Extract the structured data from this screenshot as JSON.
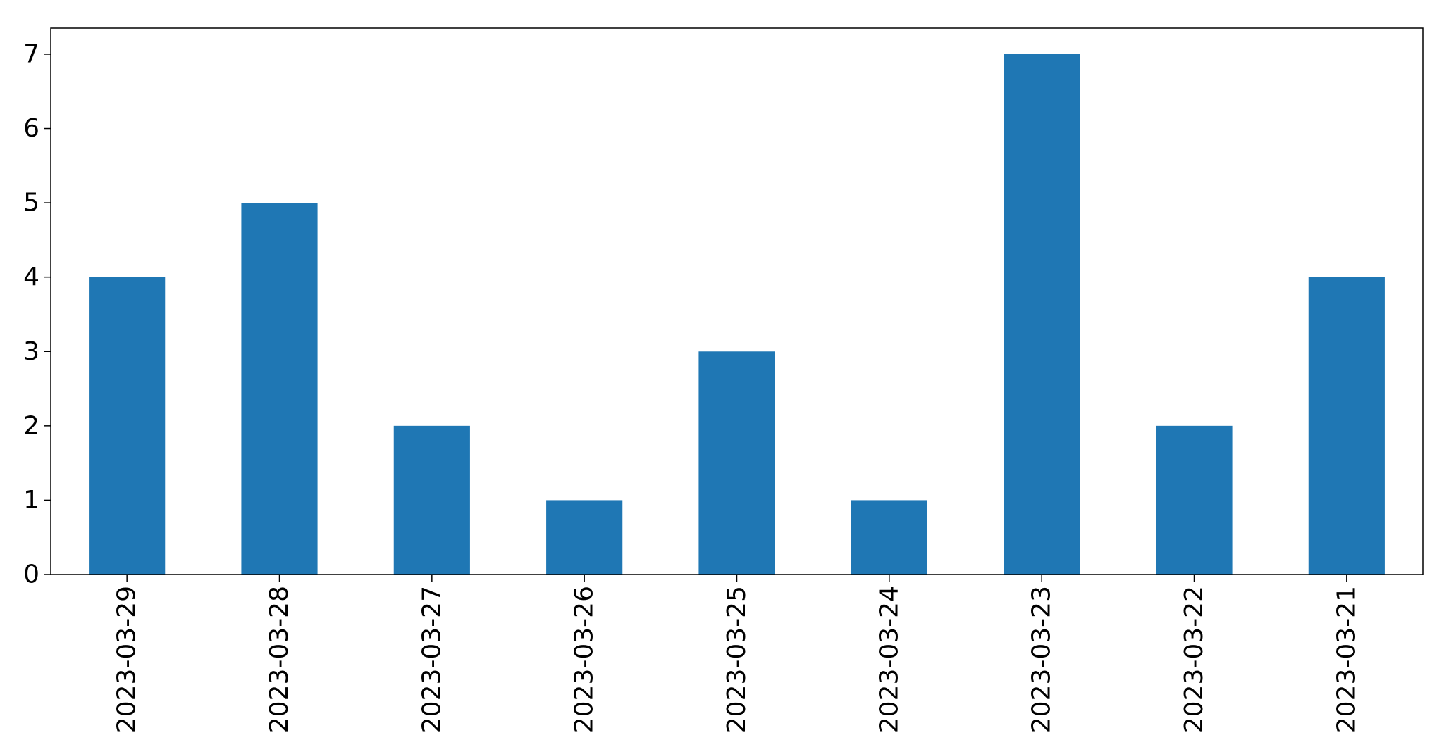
{
  "chart_data": {
    "type": "bar",
    "title": "",
    "xlabel": "",
    "ylabel": "",
    "categories": [
      "2023-03-29",
      "2023-03-28",
      "2023-03-27",
      "2023-03-26",
      "2023-03-25",
      "2023-03-24",
      "2023-03-23",
      "2023-03-22",
      "2023-03-21"
    ],
    "values": [
      4,
      5,
      2,
      1,
      3,
      1,
      7,
      2,
      4
    ],
    "ylim": [
      0,
      7.35
    ],
    "yticks": [
      0,
      1,
      2,
      3,
      4,
      5,
      6,
      7
    ],
    "grid": false,
    "legend": "none",
    "bar_color": "#1f77b4"
  }
}
